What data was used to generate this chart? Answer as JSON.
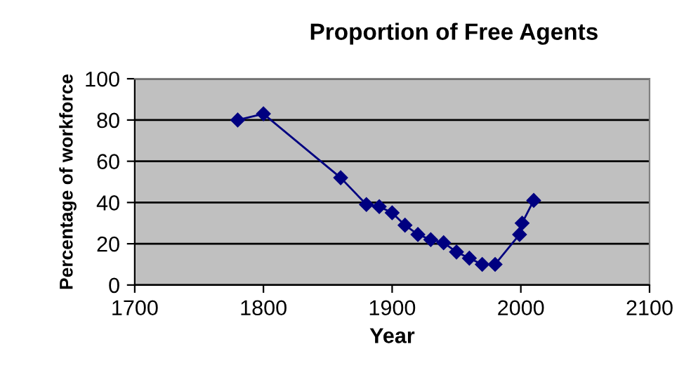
{
  "chart_data": {
    "type": "line",
    "title": "Proportion of Free Agents",
    "xlabel": "Year",
    "ylabel": "Percentage of workforce",
    "x": [
      1780,
      1800,
      1860,
      1880,
      1890,
      1900,
      1910,
      1920,
      1930,
      1940,
      1950,
      1960,
      1970,
      1980,
      1999,
      2001,
      2010
    ],
    "series": [
      {
        "color": "#000080",
        "values": [
          80,
          83,
          52,
          39,
          38,
          35,
          29,
          24.5,
          22,
          20.5,
          16,
          13,
          10,
          10,
          24.5,
          30,
          41
        ]
      }
    ],
    "xlim": [
      1700,
      2100
    ],
    "xticks": [
      1700,
      1800,
      1900,
      2000,
      2100
    ],
    "ylim": [
      0,
      100
    ],
    "yticks": [
      0,
      20,
      40,
      60,
      80,
      100
    ],
    "grid": "y",
    "legend": false,
    "marker": "diamond",
    "line_style": "solid"
  }
}
